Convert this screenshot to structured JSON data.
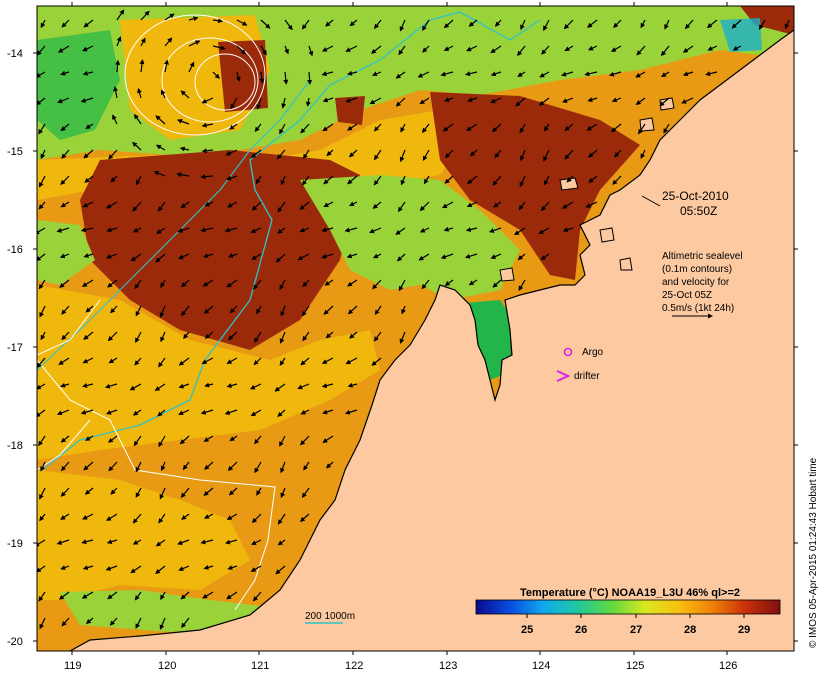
{
  "map": {
    "x_ticks": [
      "119",
      "120",
      "121",
      "122",
      "123",
      "124",
      "125",
      "126"
    ],
    "y_ticks": [
      "-14",
      "-15",
      "-16",
      "-17",
      "-18",
      "-19",
      "-20"
    ],
    "colors": {
      "land": "#fcc9a0",
      "hot": "#9a2a0a",
      "warm": "#d8680e",
      "mid": "#f0b80c",
      "cool": "#9ad23a",
      "cold": "#22b64a",
      "coldest": "#1bb0c8",
      "contour_200m": "#2fc3c9"
    }
  },
  "annotations": {
    "date": "25-Oct-2010",
    "time": "05:50Z",
    "altimetry_lines": [
      "Altimetric sealevel",
      "(0.1m contours)",
      "and velocity for",
      "25-Oct 05Z",
      "0.5m/s (1kt 24h)"
    ],
    "argo_label": "Argo",
    "drifter_label": "drifter",
    "contour_label": "200  1000m"
  },
  "colorbar": {
    "title": "Temperature (°C) NOAA19_L3U 46% ql>=2",
    "ticks": [
      "25",
      "26",
      "27",
      "28",
      "29"
    ],
    "stops": [
      "#0a0a8c",
      "#0a4ce0",
      "#10a8f0",
      "#20c8a0",
      "#60d840",
      "#d8e820",
      "#f8c010",
      "#f08008",
      "#c83008",
      "#801010"
    ]
  },
  "credit": "© IMOS 05-Apr-2015 01:24:43 Hobart time"
}
